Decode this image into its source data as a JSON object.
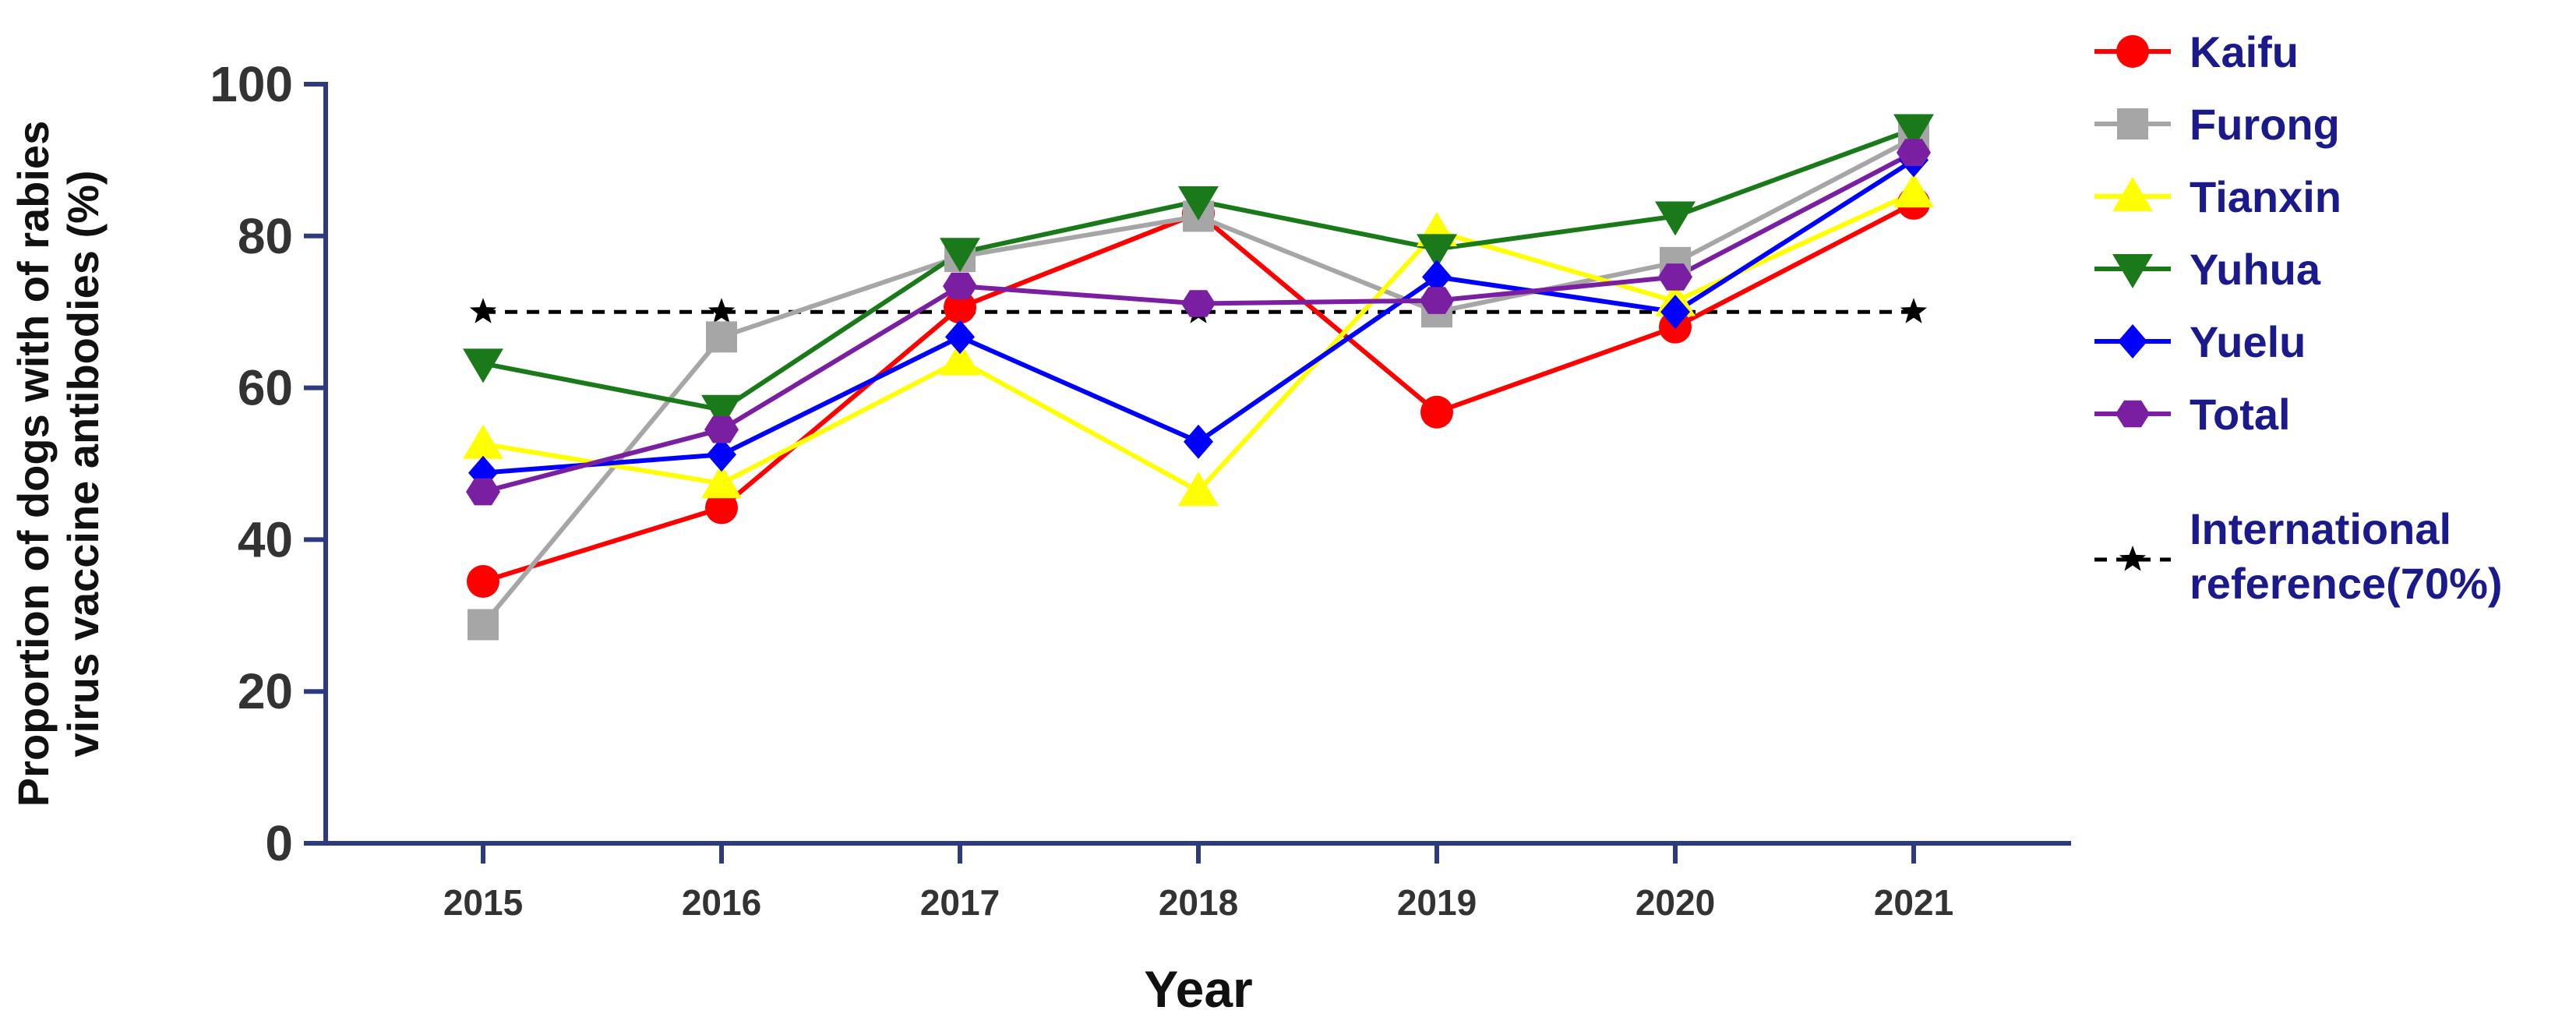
{
  "chart_data": {
    "type": "line",
    "title": "",
    "xlabel": "Year",
    "ylabel_lines": [
      "Proportion of dogs with of rabies",
      "virus vaccine antibodies (%)"
    ],
    "categories": [
      "2015",
      "2016",
      "2017",
      "2018",
      "2019",
      "2020",
      "2021"
    ],
    "ylim": [
      0,
      100
    ],
    "yticks": [
      "0",
      "20",
      "40",
      "60",
      "80",
      "100"
    ],
    "grid": false,
    "legend_position": "right",
    "series": [
      {
        "name": "Kaifu",
        "color": "#ff0000",
        "marker": "circle",
        "values": [
          34.5,
          44.2,
          70.6,
          83.0,
          56.8,
          68.0,
          84.3
        ]
      },
      {
        "name": "Furong",
        "color": "#a6a6a6",
        "marker": "square",
        "values": [
          28.8,
          66.7,
          77.3,
          82.6,
          70.0,
          76.5,
          92.9
        ]
      },
      {
        "name": "Tianxin",
        "color": "#ffff00",
        "marker": "triangle-up",
        "values": [
          52.6,
          47.4,
          63.6,
          46.4,
          80.6,
          71.4,
          85.7
        ]
      },
      {
        "name": "Yuhua",
        "color": "#1a7a1a",
        "marker": "triangle-down",
        "values": [
          63.2,
          57.1,
          77.8,
          84.6,
          78.3,
          82.6,
          94.1
        ]
      },
      {
        "name": "Yuelu",
        "color": "#0000ff",
        "marker": "diamond",
        "values": [
          48.8,
          51.2,
          66.7,
          52.9,
          74.6,
          70.0,
          90.0
        ]
      },
      {
        "name": "Total",
        "color": "#7b1fa2",
        "marker": "hexagon",
        "values": [
          46.3,
          54.5,
          73.4,
          71.1,
          71.5,
          74.6,
          91.0
        ]
      },
      {
        "name": "International reference(70%)",
        "legend_lines": [
          "International",
          "reference(70%)"
        ],
        "color": "#000000",
        "marker": "star",
        "dashed": true,
        "values": [
          70,
          70,
          70,
          70,
          70,
          70,
          70
        ]
      }
    ]
  }
}
